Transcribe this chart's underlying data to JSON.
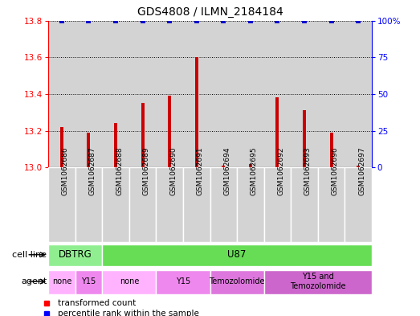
{
  "title": "GDS4808 / ILMN_2184184",
  "samples": [
    "GSM1062686",
    "GSM1062687",
    "GSM1062688",
    "GSM1062689",
    "GSM1062690",
    "GSM1062691",
    "GSM1062694",
    "GSM1062695",
    "GSM1062692",
    "GSM1062693",
    "GSM1062696",
    "GSM1062697"
  ],
  "transformed_counts": [
    13.22,
    13.19,
    13.24,
    13.35,
    13.39,
    13.6,
    13.01,
    13.02,
    13.38,
    13.31,
    13.19,
    13.01
  ],
  "percentile_ranks": [
    100,
    100,
    100,
    100,
    100,
    100,
    100,
    100,
    100,
    100,
    100,
    100
  ],
  "ylim_left": [
    13.0,
    13.8
  ],
  "ylim_right": [
    0,
    100
  ],
  "yticks_left": [
    13.0,
    13.2,
    13.4,
    13.6,
    13.8
  ],
  "yticks_right": [
    0,
    25,
    50,
    75,
    100
  ],
  "bar_color": "#cc0000",
  "dot_color": "#0000cc",
  "sample_bg_color": "#d3d3d3",
  "cell_line_groups": [
    {
      "label": "DBTRG",
      "start": 0,
      "end": 2,
      "color": "#90EE90"
    },
    {
      "label": "U87",
      "start": 2,
      "end": 12,
      "color": "#66DD55"
    }
  ],
  "agent_groups": [
    {
      "label": "none",
      "start": 0,
      "end": 1,
      "color": "#FFB3FF"
    },
    {
      "label": "Y15",
      "start": 1,
      "end": 2,
      "color": "#EE88EE"
    },
    {
      "label": "none",
      "start": 2,
      "end": 4,
      "color": "#FFB3FF"
    },
    {
      "label": "Y15",
      "start": 4,
      "end": 6,
      "color": "#EE88EE"
    },
    {
      "label": "Temozolomide",
      "start": 6,
      "end": 8,
      "color": "#DD77DD"
    },
    {
      "label": "Y15 and\nTemozolomide",
      "start": 8,
      "end": 12,
      "color": "#CC66CC"
    }
  ]
}
